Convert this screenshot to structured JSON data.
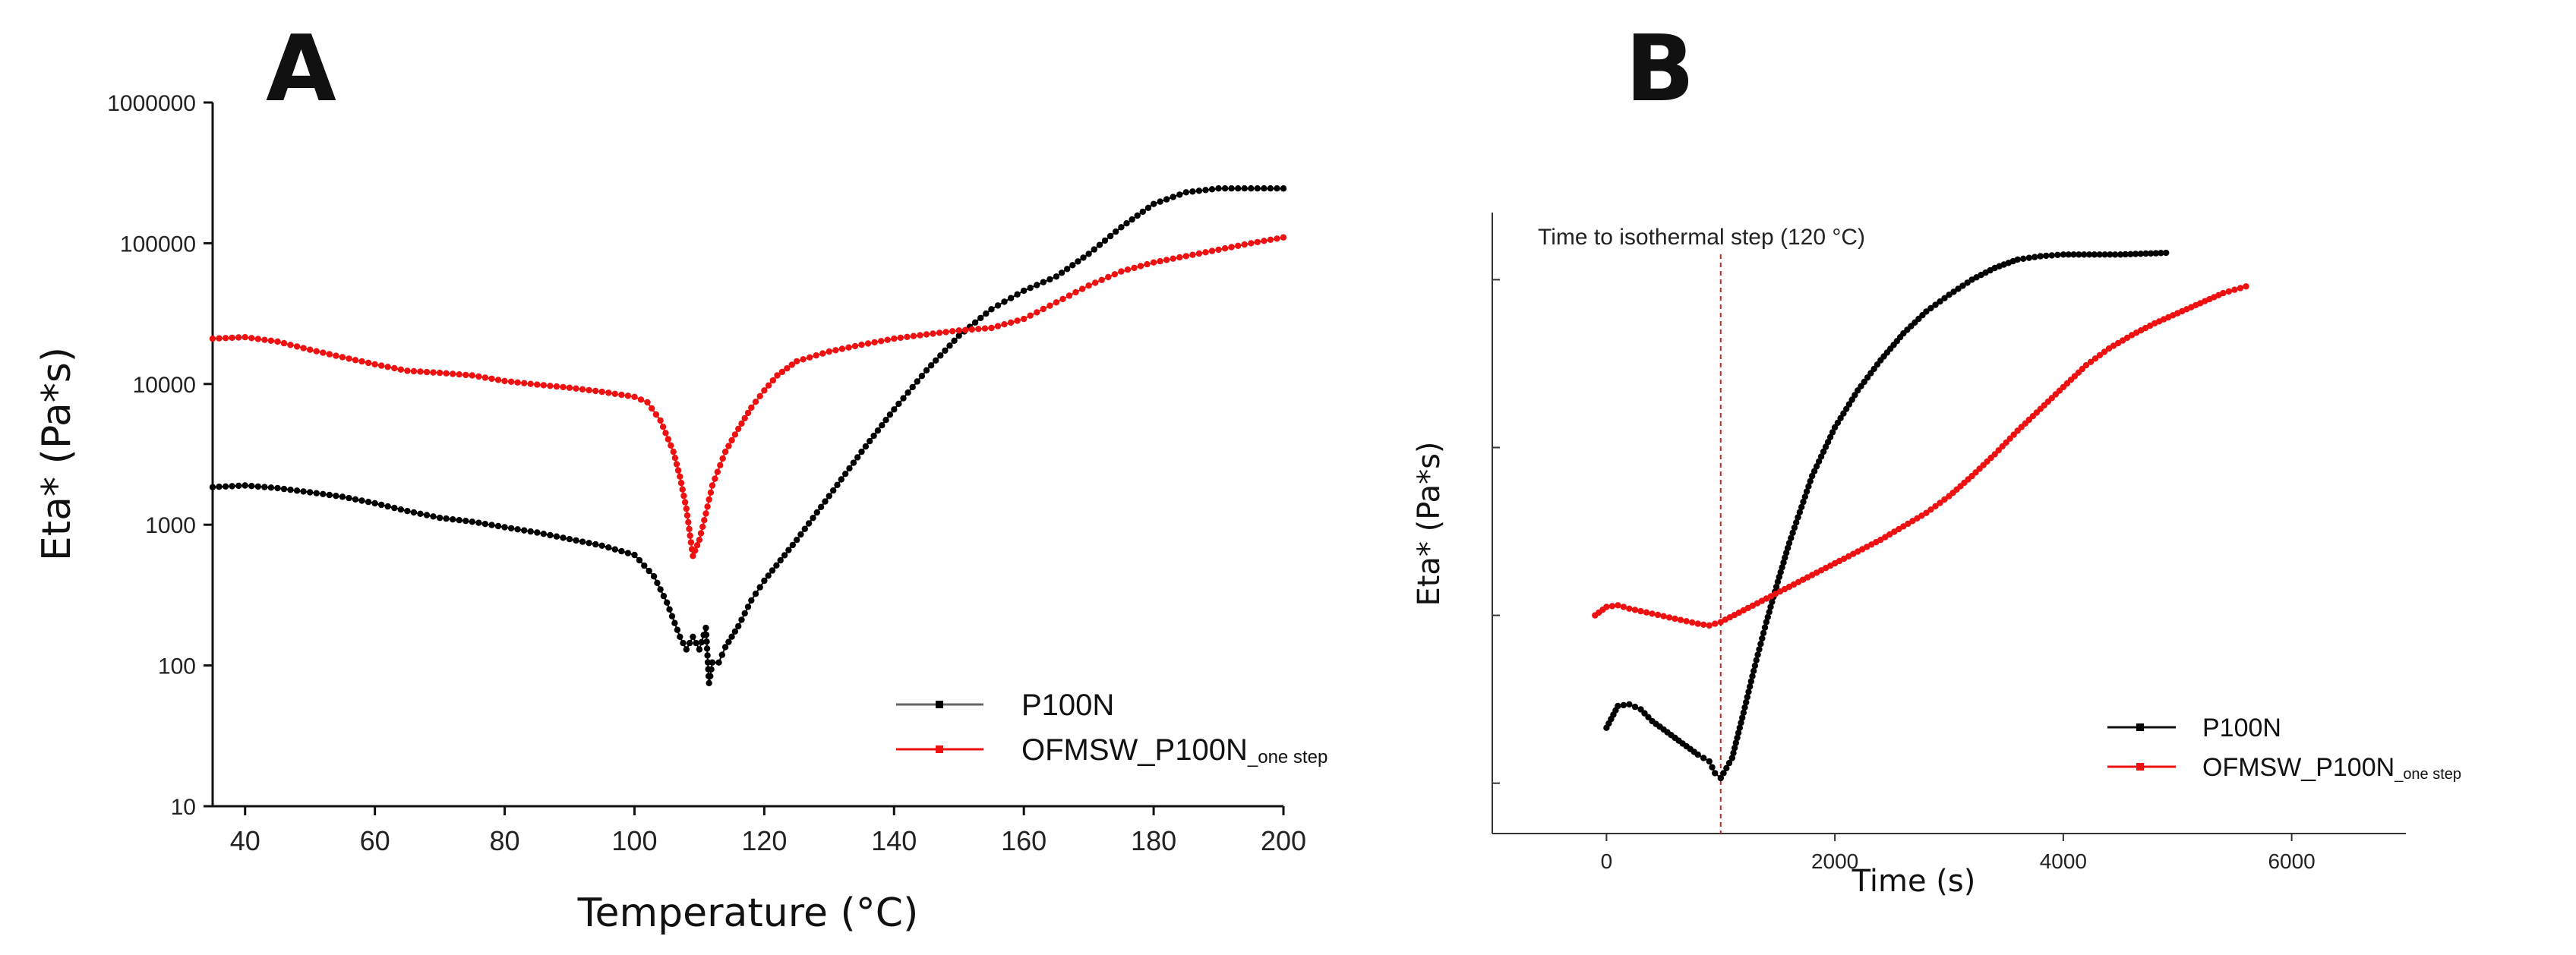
{
  "chart_data": [
    {
      "panel_label": "A",
      "type": "scatter",
      "xlabel": "Temperature (°C)",
      "ylabel": "Eta* (Pa*s)",
      "xlim": [
        35,
        200
      ],
      "ylim": [
        10,
        1000000
      ],
      "yscale": "log",
      "x_ticks": [
        40,
        60,
        80,
        100,
        120,
        140,
        160,
        180,
        200
      ],
      "y_ticks": [
        10,
        100,
        1000,
        10000,
        100000,
        1000000
      ],
      "y_tick_labels": [
        "10",
        "100",
        "1000",
        "10000",
        "100000",
        "1000000"
      ],
      "legend_position": "bottom-right",
      "series": [
        {
          "name": "P100N",
          "color": "#000000",
          "points": [
            [
              35,
              1850
            ],
            [
              40,
              1900
            ],
            [
              45,
              1820
            ],
            [
              50,
              1700
            ],
            [
              55,
              1580
            ],
            [
              60,
              1420
            ],
            [
              65,
              1250
            ],
            [
              70,
              1120
            ],
            [
              75,
              1050
            ],
            [
              80,
              960
            ],
            [
              85,
              880
            ],
            [
              90,
              790
            ],
            [
              95,
              710
            ],
            [
              100,
              610
            ],
            [
              103,
              430
            ],
            [
              105,
              280
            ],
            [
              107,
              160
            ],
            [
              108,
              130
            ],
            [
              109,
              160
            ],
            [
              110,
              130
            ],
            [
              111,
              185
            ],
            [
              111.5,
              75
            ],
            [
              112,
              105
            ],
            [
              113,
              105
            ],
            [
              114,
              135
            ],
            [
              116,
              190
            ],
            [
              118,
              290
            ],
            [
              120,
              400
            ],
            [
              125,
              780
            ],
            [
              130,
              1600
            ],
            [
              135,
              3300
            ],
            [
              140,
              6600
            ],
            [
              145,
              12500
            ],
            [
              150,
              22000
            ],
            [
              155,
              34000
            ],
            [
              160,
              46000
            ],
            [
              165,
              58000
            ],
            [
              170,
              84000
            ],
            [
              175,
              130000
            ],
            [
              180,
              190000
            ],
            [
              185,
              230000
            ],
            [
              190,
              245000
            ],
            [
              195,
              245000
            ],
            [
              200,
              245000
            ]
          ]
        },
        {
          "name": "OFMSW_P100N",
          "name_suffix": "one step",
          "color": "#ee1111",
          "points": [
            [
              35,
              21000
            ],
            [
              40,
              21500
            ],
            [
              45,
              20000
            ],
            [
              50,
              17500
            ],
            [
              55,
              15500
            ],
            [
              60,
              13800
            ],
            [
              65,
              12400
            ],
            [
              70,
              12000
            ],
            [
              75,
              11500
            ],
            [
              80,
              10500
            ],
            [
              85,
              9900
            ],
            [
              90,
              9400
            ],
            [
              95,
              8800
            ],
            [
              100,
              8100
            ],
            [
              102,
              7400
            ],
            [
              104,
              5500
            ],
            [
              106,
              3300
            ],
            [
              107,
              2200
            ],
            [
              108,
              1300
            ],
            [
              109,
              600
            ],
            [
              110,
              780
            ],
            [
              111,
              1200
            ],
            [
              112,
              1900
            ],
            [
              114,
              3300
            ],
            [
              116,
              4800
            ],
            [
              118,
              6800
            ],
            [
              120,
              9000
            ],
            [
              122,
              11500
            ],
            [
              125,
              14500
            ],
            [
              130,
              17000
            ],
            [
              135,
              19000
            ],
            [
              140,
              21000
            ],
            [
              145,
              22500
            ],
            [
              150,
              24000
            ],
            [
              155,
              25000
            ],
            [
              160,
              29000
            ],
            [
              165,
              38000
            ],
            [
              170,
              50000
            ],
            [
              175,
              63000
            ],
            [
              180,
              73000
            ],
            [
              185,
              81000
            ],
            [
              190,
              90000
            ],
            [
              195,
              100000
            ],
            [
              200,
              110000
            ]
          ]
        }
      ]
    },
    {
      "panel_label": "B",
      "type": "scatter",
      "xlabel": "Time (s)",
      "ylabel": "Eta* (Pa*s)",
      "xlim": [
        -1000,
        7000
      ],
      "x_ticks": [
        0,
        2000,
        4000,
        6000
      ],
      "y_unit_note": "log scale, tick values not labeled; y values in log10 units",
      "ylim_log10": [
        0.7,
        4.4
      ],
      "y_ticks_log10": [
        1,
        2,
        3,
        4
      ],
      "legend_position": "bottom-right",
      "annotation": {
        "text": "Time to isothermal step (120 °C)",
        "x": 1000,
        "color": "#cc2222"
      },
      "series": [
        {
          "name": "P100N",
          "color": "#000000",
          "points": [
            [
              0,
              1.33
            ],
            [
              100,
              1.46
            ],
            [
              200,
              1.47
            ],
            [
              300,
              1.44
            ],
            [
              400,
              1.37
            ],
            [
              500,
              1.32
            ],
            [
              600,
              1.27
            ],
            [
              700,
              1.22
            ],
            [
              800,
              1.17
            ],
            [
              900,
              1.13
            ],
            [
              950,
              1.06
            ],
            [
              1000,
              1.03
            ],
            [
              1100,
              1.15
            ],
            [
              1200,
              1.42
            ],
            [
              1300,
              1.7
            ],
            [
              1400,
              1.96
            ],
            [
              1500,
              2.2
            ],
            [
              1600,
              2.43
            ],
            [
              1800,
              2.83
            ],
            [
              2000,
              3.12
            ],
            [
              2200,
              3.34
            ],
            [
              2400,
              3.52
            ],
            [
              2600,
              3.68
            ],
            [
              2800,
              3.81
            ],
            [
              3000,
              3.91
            ],
            [
              3200,
              4.0
            ],
            [
              3400,
              4.07
            ],
            [
              3600,
              4.12
            ],
            [
              3800,
              4.14
            ],
            [
              4000,
              4.15
            ],
            [
              4500,
              4.15
            ],
            [
              4900,
              4.16
            ]
          ]
        },
        {
          "name": "OFMSW_P100N",
          "name_suffix": "one step",
          "color": "#ee1111",
          "points": [
            [
              -100,
              2.0
            ],
            [
              0,
              2.05
            ],
            [
              100,
              2.06
            ],
            [
              200,
              2.04
            ],
            [
              400,
              2.01
            ],
            [
              600,
              1.98
            ],
            [
              800,
              1.95
            ],
            [
              900,
              1.94
            ],
            [
              1000,
              1.96
            ],
            [
              1200,
              2.03
            ],
            [
              1400,
              2.1
            ],
            [
              1600,
              2.17
            ],
            [
              1800,
              2.24
            ],
            [
              2000,
              2.31
            ],
            [
              2200,
              2.38
            ],
            [
              2400,
              2.45
            ],
            [
              2600,
              2.53
            ],
            [
              2800,
              2.61
            ],
            [
              3000,
              2.71
            ],
            [
              3200,
              2.83
            ],
            [
              3400,
              2.96
            ],
            [
              3600,
              3.1
            ],
            [
              3800,
              3.23
            ],
            [
              4000,
              3.36
            ],
            [
              4200,
              3.49
            ],
            [
              4400,
              3.59
            ],
            [
              4600,
              3.67
            ],
            [
              4800,
              3.74
            ],
            [
              5000,
              3.8
            ],
            [
              5200,
              3.86
            ],
            [
              5400,
              3.92
            ],
            [
              5600,
              3.96
            ]
          ]
        }
      ]
    }
  ]
}
